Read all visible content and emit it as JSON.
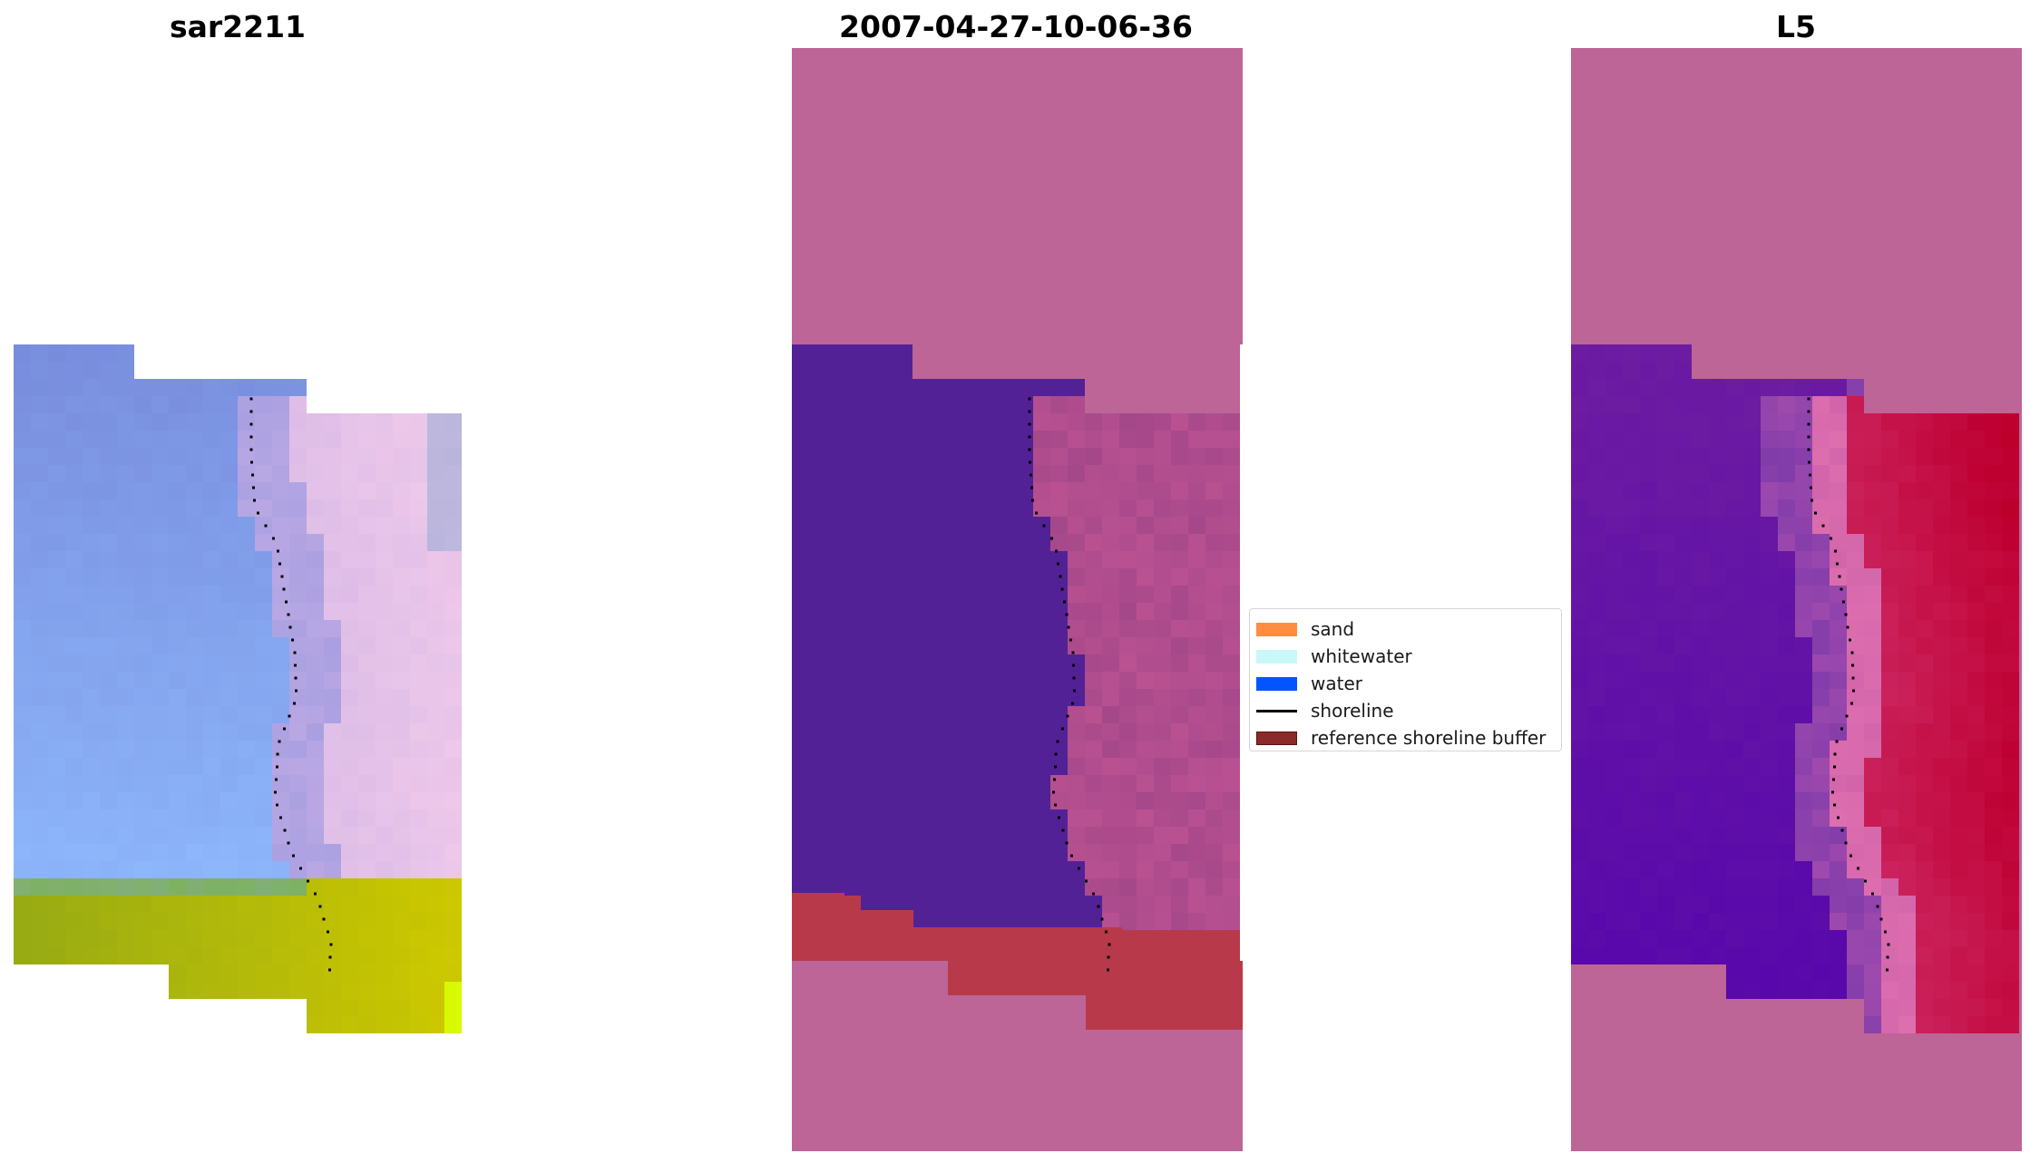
{
  "panels": [
    {
      "title": "sar2211"
    },
    {
      "title": "2007-04-27-10-06-36"
    },
    {
      "title": "L5"
    }
  ],
  "legend": {
    "items": [
      {
        "label": "sand",
        "type": "patch",
        "color": "#ff8c3f"
      },
      {
        "label": "whitewater",
        "type": "patch",
        "color": "#c8f8f8"
      },
      {
        "label": "water",
        "type": "patch",
        "color": "#0055ff"
      },
      {
        "label": "shoreline",
        "type": "line",
        "color": "#000000"
      },
      {
        "label": "reference shoreline buffer",
        "type": "patch",
        "color": "#8b2a2a"
      }
    ]
  },
  "colors": {
    "nodata_pink": "#bc6596",
    "water_classified": "#532196",
    "land_classified": "#a84a8a",
    "buffer_red": "#b83a4a",
    "shoreline_dots": "#000000"
  }
}
